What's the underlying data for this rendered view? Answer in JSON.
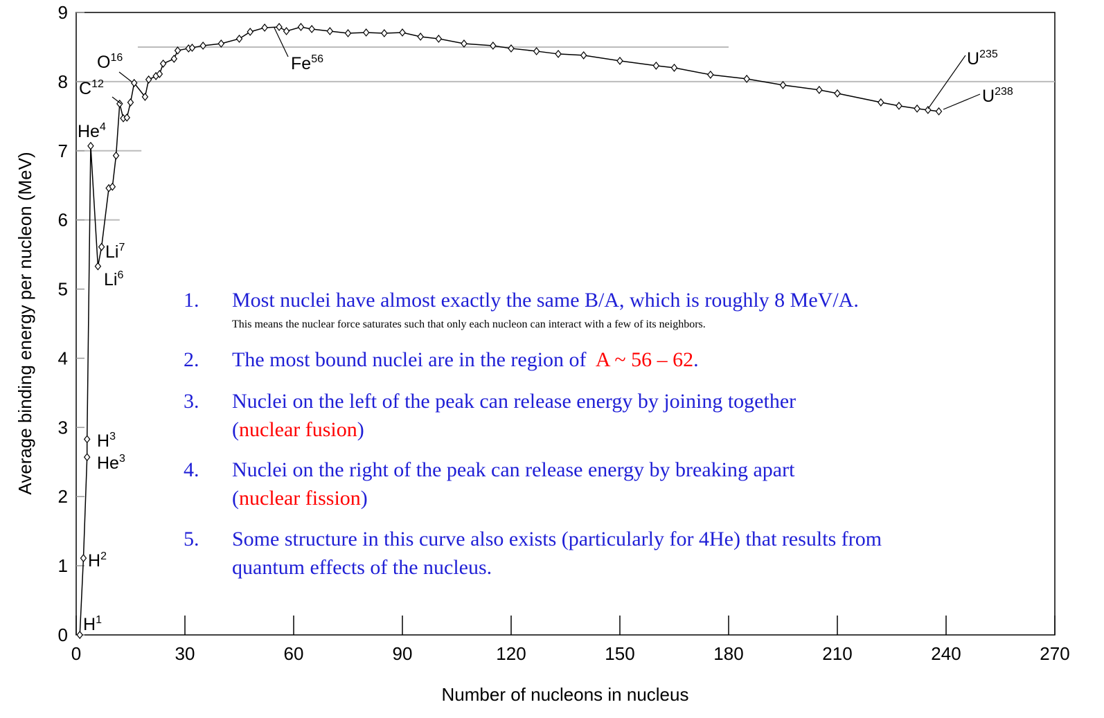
{
  "chart_data": {
    "type": "line",
    "xlabel": "Number of nucleons in nucleus",
    "ylabel": "Average binding energy per nucleon (MeV)",
    "xlim": [
      0,
      270
    ],
    "ylim": [
      0,
      9
    ],
    "xticks": [
      0,
      30,
      60,
      90,
      120,
      150,
      180,
      210,
      240,
      270
    ],
    "yticks": [
      0,
      1,
      2,
      3,
      4,
      5,
      6,
      7,
      8,
      9
    ],
    "color": "#000000",
    "x": [
      1,
      2,
      3,
      3,
      4,
      6,
      7,
      9,
      10,
      11,
      12,
      13,
      14,
      15,
      16,
      19,
      20,
      22,
      23,
      24,
      27,
      28,
      31,
      32,
      35,
      40,
      45,
      48,
      52,
      56,
      58,
      62,
      65,
      70,
      75,
      80,
      85,
      90,
      95,
      100,
      107,
      115,
      120,
      127,
      133,
      140,
      150,
      160,
      165,
      175,
      185,
      195,
      205,
      210,
      222,
      227,
      232,
      235,
      238
    ],
    "values": [
      0,
      1.11,
      2.57,
      2.83,
      7.07,
      5.33,
      5.61,
      6.46,
      6.48,
      6.93,
      7.68,
      7.47,
      7.48,
      7.7,
      7.98,
      7.78,
      8.03,
      8.08,
      8.11,
      8.26,
      8.33,
      8.45,
      8.48,
      8.49,
      8.52,
      8.55,
      8.62,
      8.72,
      8.78,
      8.79,
      8.73,
      8.79,
      8.76,
      8.73,
      8.7,
      8.71,
      8.7,
      8.71,
      8.65,
      8.62,
      8.55,
      8.52,
      8.48,
      8.44,
      8.4,
      8.38,
      8.3,
      8.23,
      8.2,
      8.1,
      8.04,
      7.95,
      7.88,
      7.83,
      7.7,
      7.65,
      7.61,
      7.59,
      7.57
    ],
    "reference_lines": [
      {
        "y": 8.5,
        "x": [
          17,
          180
        ]
      },
      {
        "y": 8,
        "x": [
          0,
          270
        ]
      },
      {
        "y": 7,
        "x": [
          0,
          18
        ]
      },
      {
        "y": 6,
        "x": [
          0,
          12
        ]
      }
    ],
    "annotations": [
      {
        "label": "H",
        "sup": "1"
      },
      {
        "label": "H",
        "sup": "2"
      },
      {
        "label": "H",
        "sup": "3"
      },
      {
        "label": "He",
        "sup": "3"
      },
      {
        "label": "He",
        "sup": "4"
      },
      {
        "label": "Li",
        "sup": "7"
      },
      {
        "label": "Li",
        "sup": "6"
      },
      {
        "label": "C",
        "sup": "12"
      },
      {
        "label": "O",
        "sup": "16"
      },
      {
        "label": "Fe",
        "sup": "56"
      },
      {
        "label": "U",
        "sup": "235"
      },
      {
        "label": "U",
        "sup": "238"
      }
    ],
    "notes": [
      {
        "number": "1.",
        "lines": [
          [
            {
              "text": "Most nuclei have almost exactly the same B/A, which is roughly 8 MeV/A."
            }
          ]
        ],
        "detail": "This means the nuclear force saturates such that only each nucleon can interact with a few of its neighbors."
      },
      {
        "number": "2.",
        "lines": [
          [
            {
              "text": "The most bound nuclei are in the region of  "
            },
            {
              "text": "A ~ 56 – 62",
              "color": "#ff0000"
            },
            {
              "text": "."
            }
          ]
        ]
      },
      {
        "number": "3.",
        "lines": [
          [
            {
              "text": "Nuclei on the left of the peak can release energy by joining together"
            }
          ],
          [
            {
              "text": "("
            },
            {
              "text": "nuclear fusion",
              "color": "#ff0000"
            },
            {
              "text": ")"
            }
          ]
        ]
      },
      {
        "number": "4.",
        "lines": [
          [
            {
              "text": "Nuclei on the right of the peak can release energy by breaking apart"
            }
          ],
          [
            {
              "text": "("
            },
            {
              "text": "nuclear fission",
              "color": "#ff0000"
            },
            {
              "text": ")"
            }
          ]
        ]
      },
      {
        "number": "5.",
        "lines": [
          [
            {
              "text": "Some structure in this curve also exists (particularly for 4He) that results from"
            }
          ],
          [
            {
              "text": "quantum effects of the nucleus."
            }
          ]
        ]
      }
    ]
  }
}
